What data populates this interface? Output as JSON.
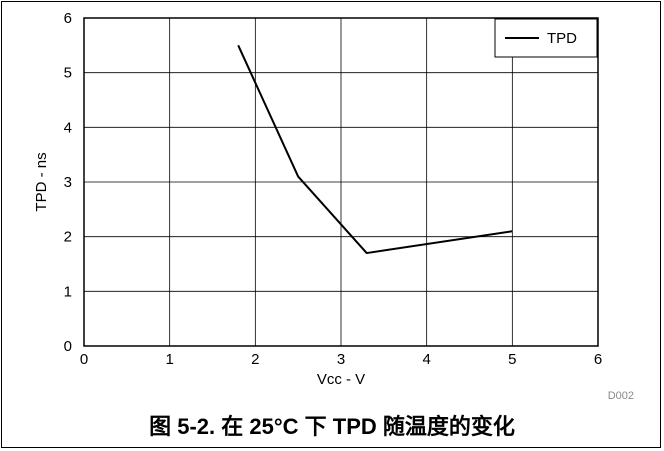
{
  "caption": "图 5-2. 在 25°C 下 TPD 随温度的变化",
  "figure_id": "D002",
  "chart_data": {
    "type": "line",
    "xlabel": "Vcc - V",
    "ylabel": "TPD - ns",
    "xlim": [
      0,
      6
    ],
    "ylim": [
      0,
      6
    ],
    "x_ticks": [
      "0",
      "1",
      "2",
      "3",
      "4",
      "5",
      "6"
    ],
    "y_ticks": [
      "0",
      "1",
      "2",
      "3",
      "4",
      "5",
      "6"
    ],
    "grid": true,
    "legend_position": "top-right",
    "series": [
      {
        "name": "TPD",
        "color": "#000000",
        "x": [
          1.8,
          2.5,
          3.3,
          5.0
        ],
        "y": [
          5.5,
          3.1,
          1.7,
          2.1
        ]
      }
    ]
  }
}
